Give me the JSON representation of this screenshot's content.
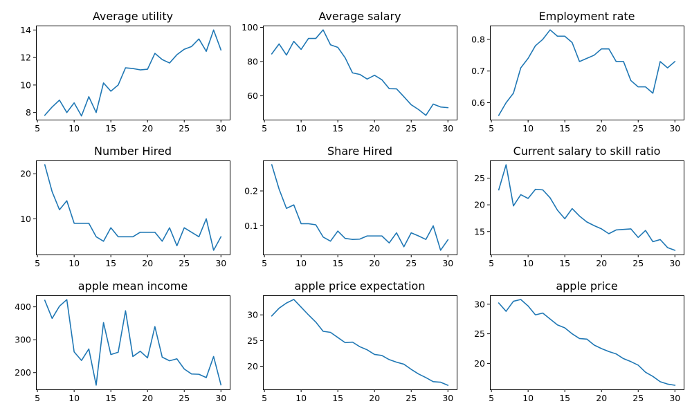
{
  "colors": {
    "series": "#1f77b4",
    "axis": "#000000",
    "background": "#ffffff"
  },
  "chart_data": [
    {
      "type": "line",
      "title": "Average utility",
      "xlabel": "",
      "ylabel": "",
      "x": [
        6,
        7,
        8,
        9,
        10,
        11,
        12,
        13,
        14,
        15,
        16,
        17,
        18,
        19,
        20,
        21,
        22,
        23,
        24,
        25,
        26,
        27,
        28,
        29,
        30
      ],
      "series": [
        {
          "values": [
            7.8,
            8.4,
            8.9,
            8.0,
            8.7,
            7.75,
            9.15,
            8.0,
            10.15,
            9.55,
            10.0,
            11.25,
            11.2,
            11.1,
            11.15,
            12.3,
            11.85,
            11.6,
            12.2,
            12.6,
            12.8,
            13.35,
            12.45,
            14.0,
            12.55
          ]
        }
      ],
      "xlim": [
        4.8,
        31.2
      ],
      "ylim": [
        7.48,
        14.32
      ],
      "xticks": [
        5,
        10,
        15,
        20,
        25,
        30
      ],
      "xtick_labels": [
        "5",
        "10",
        "15",
        "20",
        "25",
        "30"
      ],
      "yticks": [
        8,
        10,
        12,
        14
      ],
      "ytick_labels": [
        "8",
        "10",
        "12",
        "14"
      ],
      "grid": false
    },
    {
      "type": "line",
      "title": "Average salary",
      "xlabel": "",
      "ylabel": "",
      "x": [
        6,
        7,
        8,
        9,
        10,
        11,
        12,
        13,
        14,
        15,
        16,
        17,
        18,
        19,
        20,
        21,
        22,
        23,
        24,
        25,
        26,
        27,
        28,
        29,
        30
      ],
      "series": [
        {
          "values": [
            84.5,
            90.3,
            83.8,
            91.8,
            87.1,
            93.5,
            93.5,
            98.5,
            89.8,
            88.3,
            82.2,
            73.4,
            72.5,
            69.8,
            72.0,
            69.4,
            64.2,
            64.1,
            59.5,
            54.8,
            52.0,
            48.6,
            55.2,
            53.5,
            53.1
          ]
        }
      ],
      "xlim": [
        4.8,
        31.2
      ],
      "ylim": [
        46.1,
        101.0
      ],
      "xticks": [
        5,
        10,
        15,
        20,
        25,
        30
      ],
      "xtick_labels": [
        "5",
        "10",
        "15",
        "20",
        "25",
        "30"
      ],
      "yticks": [
        60,
        80,
        100
      ],
      "ytick_labels": [
        "60",
        "80",
        "100"
      ],
      "grid": false
    },
    {
      "type": "line",
      "title": "Employment rate",
      "xlabel": "",
      "ylabel": "",
      "x": [
        6,
        7,
        8,
        9,
        10,
        11,
        12,
        13,
        14,
        15,
        16,
        17,
        18,
        19,
        20,
        21,
        22,
        23,
        24,
        25,
        26,
        27,
        28,
        29,
        30
      ],
      "series": [
        {
          "values": [
            0.56,
            0.6,
            0.63,
            0.71,
            0.74,
            0.78,
            0.8,
            0.83,
            0.81,
            0.81,
            0.79,
            0.73,
            0.74,
            0.75,
            0.77,
            0.77,
            0.73,
            0.73,
            0.67,
            0.65,
            0.65,
            0.63,
            0.73,
            0.71,
            0.73
          ]
        }
      ],
      "xlim": [
        4.8,
        31.2
      ],
      "ylim": [
        0.5465,
        0.8435
      ],
      "xticks": [
        5,
        10,
        15,
        20,
        25,
        30
      ],
      "xtick_labels": [
        "5",
        "10",
        "15",
        "20",
        "25",
        "30"
      ],
      "yticks": [
        0.6,
        0.7,
        0.8
      ],
      "ytick_labels": [
        "0.6",
        "0.7",
        "0.8"
      ],
      "grid": false
    },
    {
      "type": "line",
      "title": "Number Hired",
      "xlabel": "",
      "ylabel": "",
      "x": [
        6,
        7,
        8,
        9,
        10,
        11,
        12,
        13,
        14,
        15,
        16,
        17,
        18,
        19,
        20,
        21,
        22,
        23,
        24,
        25,
        26,
        27,
        28,
        29,
        30
      ],
      "series": [
        {
          "values": [
            22,
            16,
            12,
            14,
            9,
            9,
            9,
            6,
            5,
            8,
            6,
            6,
            6,
            7,
            7,
            7,
            5,
            8,
            4,
            8,
            7,
            6,
            10,
            3,
            6
          ]
        }
      ],
      "xlim": [
        4.8,
        31.2
      ],
      "ylim": [
        2.05,
        22.95
      ],
      "xticks": [
        5,
        10,
        15,
        20,
        25,
        30
      ],
      "xtick_labels": [
        "5",
        "10",
        "15",
        "20",
        "25",
        "30"
      ],
      "yticks": [
        10,
        20
      ],
      "ytick_labels": [
        "10",
        "20"
      ],
      "grid": false
    },
    {
      "type": "line",
      "title": "Share Hired",
      "xlabel": "",
      "ylabel": "",
      "x": [
        6,
        7,
        8,
        9,
        10,
        11,
        12,
        13,
        14,
        15,
        16,
        17,
        18,
        19,
        20,
        21,
        22,
        23,
        24,
        25,
        26,
        27,
        28,
        29,
        30
      ],
      "series": [
        {
          "values": [
            0.275,
            0.205,
            0.15,
            0.16,
            0.106,
            0.106,
            0.103,
            0.068,
            0.056,
            0.085,
            0.064,
            0.061,
            0.062,
            0.071,
            0.071,
            0.071,
            0.051,
            0.08,
            0.04,
            0.08,
            0.071,
            0.061,
            0.1,
            0.03,
            0.06
          ]
        }
      ],
      "xlim": [
        4.8,
        31.2
      ],
      "ylim": [
        0.01775,
        0.28725
      ],
      "xticks": [
        5,
        10,
        15,
        20,
        25,
        30
      ],
      "xtick_labels": [
        "5",
        "10",
        "15",
        "20",
        "25",
        "30"
      ],
      "yticks": [
        0.1,
        0.2
      ],
      "ytick_labels": [
        "0.1",
        "0.2"
      ],
      "grid": false
    },
    {
      "type": "line",
      "title": "Current salary to skill ratio",
      "xlabel": "",
      "ylabel": "",
      "x": [
        6,
        7,
        8,
        9,
        10,
        11,
        12,
        13,
        14,
        15,
        16,
        17,
        18,
        19,
        20,
        21,
        22,
        23,
        24,
        25,
        26,
        27,
        28,
        29,
        30
      ],
      "series": [
        {
          "values": [
            22.8,
            27.5,
            19.8,
            21.9,
            21.2,
            22.9,
            22.8,
            21.3,
            19.0,
            17.4,
            19.3,
            17.9,
            16.8,
            16.1,
            15.5,
            14.6,
            15.3,
            15.4,
            15.5,
            13.9,
            15.2,
            13.1,
            13.5,
            12.0,
            11.5
          ]
        }
      ],
      "xlim": [
        4.8,
        31.2
      ],
      "ylim": [
        10.7,
        28.3
      ],
      "xticks": [
        5,
        10,
        15,
        20,
        25,
        30
      ],
      "xtick_labels": [
        "5",
        "10",
        "15",
        "20",
        "25",
        "30"
      ],
      "yticks": [
        15,
        20,
        25
      ],
      "ytick_labels": [
        "15",
        "20",
        "25"
      ],
      "grid": false
    },
    {
      "type": "line",
      "title": "apple mean income",
      "xlabel": "",
      "ylabel": "",
      "x": [
        6,
        7,
        8,
        9,
        10,
        11,
        12,
        13,
        14,
        15,
        16,
        17,
        18,
        19,
        20,
        21,
        22,
        23,
        24,
        25,
        26,
        27,
        28,
        29,
        30
      ],
      "series": [
        {
          "values": [
            420,
            365,
            402,
            422,
            263,
            237,
            272,
            162,
            352,
            255,
            262,
            388,
            249,
            265,
            245,
            340,
            247,
            236,
            242,
            211,
            196,
            195,
            185,
            249,
            163
          ]
        }
      ],
      "xlim": [
        4.8,
        31.2
      ],
      "ylim": [
        149,
        435
      ],
      "xticks": [
        5,
        10,
        15,
        20,
        25,
        30
      ],
      "xtick_labels": [
        "5",
        "10",
        "15",
        "20",
        "25",
        "30"
      ],
      "yticks": [
        200,
        300,
        400
      ],
      "ytick_labels": [
        "200",
        "300",
        "400"
      ],
      "grid": false
    },
    {
      "type": "line",
      "title": "apple price expectation",
      "xlabel": "",
      "ylabel": "",
      "x": [
        6,
        7,
        8,
        9,
        10,
        11,
        12,
        13,
        14,
        15,
        16,
        17,
        18,
        19,
        20,
        21,
        22,
        23,
        24,
        25,
        26,
        27,
        28,
        29,
        30
      ],
      "series": [
        {
          "values": [
            29.8,
            31.3,
            32.3,
            33.0,
            31.5,
            30.0,
            28.6,
            26.8,
            26.6,
            25.6,
            24.6,
            24.7,
            23.8,
            23.2,
            22.3,
            22.1,
            21.3,
            20.8,
            20.4,
            19.4,
            18.5,
            17.8,
            17.0,
            16.9,
            16.3
          ]
        }
      ],
      "xlim": [
        4.8,
        31.2
      ],
      "ylim": [
        15.5,
        33.8
      ],
      "xticks": [
        5,
        10,
        15,
        20,
        25,
        30
      ],
      "xtick_labels": [
        "5",
        "10",
        "15",
        "20",
        "25",
        "30"
      ],
      "yticks": [
        20,
        25,
        30
      ],
      "ytick_labels": [
        "20",
        "25",
        "30"
      ],
      "grid": false
    },
    {
      "type": "line",
      "title": "apple price",
      "xlabel": "",
      "ylabel": "",
      "x": [
        6,
        7,
        8,
        9,
        10,
        11,
        12,
        13,
        14,
        15,
        16,
        17,
        18,
        19,
        20,
        21,
        22,
        23,
        24,
        25,
        26,
        27,
        28,
        29,
        30
      ],
      "series": [
        {
          "values": [
            30.2,
            28.8,
            30.5,
            30.8,
            29.7,
            28.2,
            28.5,
            27.5,
            26.5,
            26.0,
            25.0,
            24.2,
            24.1,
            23.1,
            22.5,
            22.0,
            21.6,
            20.8,
            20.3,
            19.7,
            18.5,
            17.8,
            16.9,
            16.5,
            16.3
          ]
        }
      ],
      "xlim": [
        4.8,
        31.2
      ],
      "ylim": [
        15.6,
        31.5
      ],
      "xticks": [
        5,
        10,
        15,
        20,
        25,
        30
      ],
      "xtick_labels": [
        "5",
        "10",
        "15",
        "20",
        "25",
        "30"
      ],
      "yticks": [
        20,
        25,
        30
      ],
      "ytick_labels": [
        "20",
        "25",
        "30"
      ],
      "grid": false
    }
  ]
}
